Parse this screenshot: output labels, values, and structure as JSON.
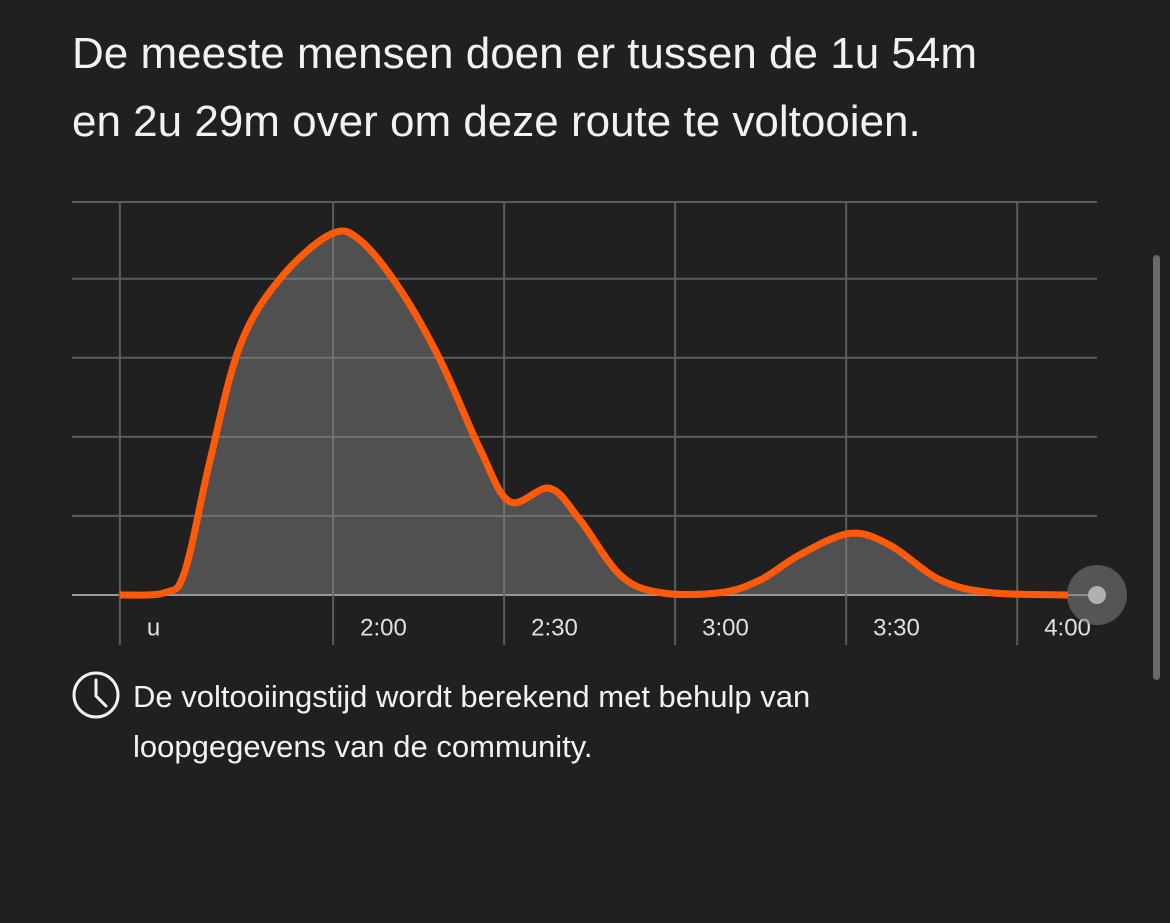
{
  "title": [
    "De meeste mensen doen er tussen de 1u 54m",
    "en 2u 29m over om deze route te voltooien."
  ],
  "chart_data": {
    "type": "area",
    "x": [
      82.6,
      90.5,
      94,
      98.4,
      103.7,
      110.7,
      119.5,
      124.7,
      131.8,
      138.8,
      145.8,
      151,
      158,
      163.3,
      170.4,
      177.4,
      187.9,
      194.9,
      201.9,
      210.7,
      217.7,
      226.5,
      235.3,
      248.9
    ],
    "series": [
      {
        "color": "#ff5a0a",
        "values": [
          0,
          0.03,
          0.3,
          1.7,
          3.16,
          4.0,
          4.56,
          4.49,
          3.86,
          2.97,
          1.84,
          1.18,
          1.35,
          0.95,
          0.25,
          0.03,
          0.03,
          0.19,
          0.51,
          0.78,
          0.63,
          0.19,
          0.03,
          0
        ]
      }
    ],
    "xlim": [
      74.2,
      254
    ],
    "xticks": [
      {
        "value": 82.6,
        "label": "u"
      },
      {
        "value": 120,
        "label": "2:00"
      },
      {
        "value": 150,
        "label": "2:30"
      },
      {
        "value": 180,
        "label": "3:00"
      },
      {
        "value": 210,
        "label": "3:30"
      },
      {
        "value": 240,
        "label": "4:00"
      }
    ],
    "ylim": [
      0,
      4.97
    ],
    "yticks": [
      0,
      1,
      2,
      3,
      4,
      4.97
    ],
    "grid": true
  },
  "note": [
    "De voltooiingstijd wordt berekend met behulp van",
    "loopgegevens van de community."
  ]
}
